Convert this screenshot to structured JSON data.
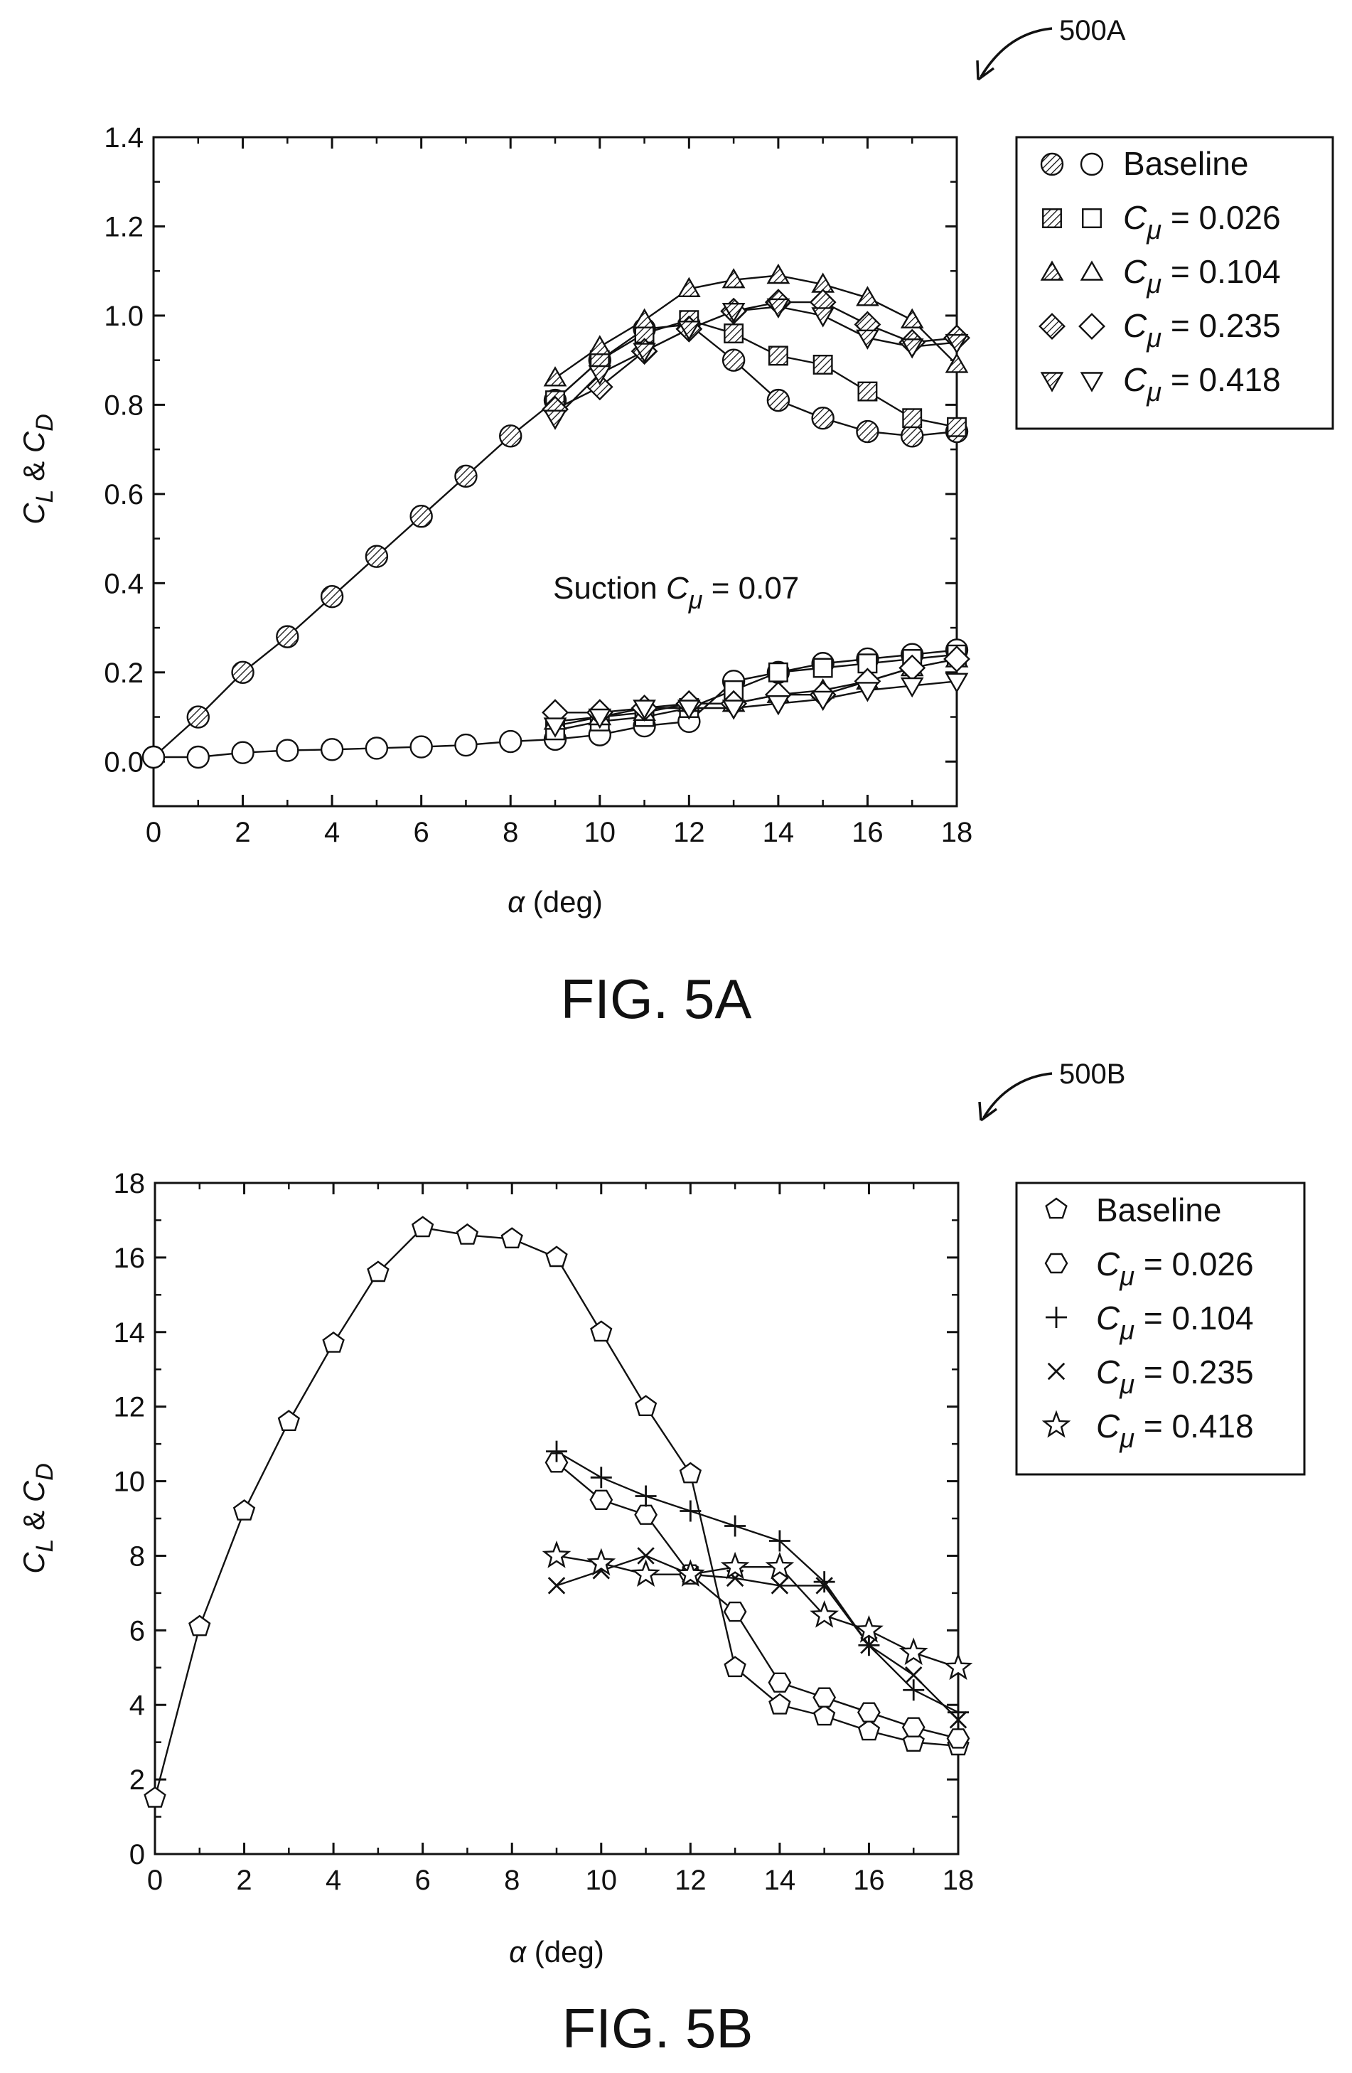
{
  "reference_labels": [
    "500A",
    "500B"
  ],
  "chart_data": [
    {
      "type": "scatter",
      "figure_label": "FIG. 5A",
      "xlabel_symbol": "α",
      "xlabel_unit": " (deg)",
      "ylabel": {
        "c1": "C",
        "s1": "L",
        "amp": " & ",
        "c2": "C",
        "s2": "D"
      },
      "xlim": [
        0,
        18
      ],
      "ylim": [
        -0.1,
        1.4
      ],
      "xticks": [
        0,
        2,
        4,
        6,
        8,
        10,
        12,
        14,
        16,
        18
      ],
      "yticks": [
        0.0,
        0.2,
        0.4,
        0.6,
        0.8,
        1.0,
        1.2,
        1.4
      ],
      "ytick_labels": [
        "0.0",
        "0.2",
        "0.4",
        "0.6",
        "0.8",
        "1.0",
        "1.2",
        "1.4"
      ],
      "grid": false,
      "legend_position": "right",
      "annotation": {
        "prefix": "Suction ",
        "c": "C",
        "mu": "μ",
        "suffix": " = 0.07"
      },
      "legend": [
        {
          "label": "Baseline",
          "marker": "circle"
        },
        {
          "label_c": "C",
          "label_mu": "μ",
          "label_value": " = 0.026",
          "marker": "square"
        },
        {
          "label_c": "C",
          "label_mu": "μ",
          "label_value": " = 0.104",
          "marker": "triangle-up"
        },
        {
          "label_c": "C",
          "label_mu": "μ",
          "label_value": " = 0.235",
          "marker": "diamond"
        },
        {
          "label_c": "C",
          "label_mu": "μ",
          "label_value": " = 0.418",
          "marker": "triangle-down"
        }
      ],
      "series": [
        {
          "name": "Baseline",
          "quantity": "CL",
          "marker": "circle",
          "fill": "hatched",
          "x": [
            0,
            1,
            2,
            3,
            4,
            5,
            6,
            7,
            8,
            9,
            10,
            11,
            12,
            13,
            14,
            15,
            16,
            17,
            18
          ],
          "y": [
            0.01,
            0.1,
            0.2,
            0.28,
            0.37,
            0.46,
            0.55,
            0.64,
            0.73,
            0.81,
            0.9,
            0.97,
            0.98,
            0.9,
            0.81,
            0.77,
            0.74,
            0.73,
            0.74
          ]
        },
        {
          "name": "Baseline",
          "quantity": "CD",
          "marker": "circle",
          "fill": "open",
          "x": [
            0,
            1,
            2,
            3,
            4,
            5,
            6,
            7,
            8,
            9,
            10,
            11,
            12,
            13,
            14,
            15,
            16,
            17,
            18
          ],
          "y": [
            0.01,
            0.01,
            0.02,
            0.025,
            0.027,
            0.03,
            0.033,
            0.037,
            0.045,
            0.05,
            0.06,
            0.08,
            0.09,
            0.18,
            0.2,
            0.22,
            0.23,
            0.24,
            0.25
          ]
        },
        {
          "name": "0.026",
          "quantity": "CL",
          "marker": "square",
          "fill": "hatched",
          "x": [
            9,
            10,
            11,
            12,
            13,
            14,
            15,
            16,
            17,
            18
          ],
          "y": [
            0.81,
            0.9,
            0.96,
            0.99,
            0.96,
            0.91,
            0.89,
            0.83,
            0.77,
            0.75
          ]
        },
        {
          "name": "0.026",
          "quantity": "CD",
          "marker": "square",
          "fill": "open",
          "x": [
            9,
            10,
            11,
            12,
            13,
            14,
            15,
            16,
            17,
            18
          ],
          "y": [
            0.07,
            0.09,
            0.1,
            0.12,
            0.16,
            0.2,
            0.21,
            0.22,
            0.23,
            0.24
          ]
        },
        {
          "name": "0.104",
          "quantity": "CL",
          "marker": "triangle-up",
          "fill": "hatched",
          "x": [
            9,
            10,
            11,
            12,
            13,
            14,
            15,
            16,
            17,
            18
          ],
          "y": [
            0.86,
            0.93,
            0.99,
            1.06,
            1.08,
            1.09,
            1.07,
            1.04,
            0.99,
            0.89
          ]
        },
        {
          "name": "0.104",
          "quantity": "CD",
          "marker": "triangle-up",
          "fill": "open",
          "x": [
            9,
            10,
            11,
            12,
            13,
            14,
            15,
            16,
            17,
            18
          ],
          "y": [
            0.09,
            0.1,
            0.11,
            0.13,
            0.13,
            0.15,
            0.16,
            0.18,
            0.21,
            0.23
          ]
        },
        {
          "name": "0.235",
          "quantity": "CL",
          "marker": "diamond",
          "fill": "hatched",
          "x": [
            9,
            10,
            11,
            12,
            13,
            14,
            15,
            16,
            17,
            18
          ],
          "y": [
            0.79,
            0.84,
            0.92,
            0.97,
            1.01,
            1.03,
            1.03,
            0.98,
            0.94,
            0.95
          ]
        },
        {
          "name": "0.235",
          "quantity": "CD",
          "marker": "diamond",
          "fill": "open",
          "x": [
            9,
            10,
            11,
            12,
            13,
            14,
            15,
            16,
            17,
            18
          ],
          "y": [
            0.11,
            0.11,
            0.12,
            0.13,
            0.13,
            0.15,
            0.15,
            0.18,
            0.21,
            0.23
          ]
        },
        {
          "name": "0.418",
          "quantity": "CL",
          "marker": "triangle-down",
          "fill": "hatched",
          "x": [
            9,
            10,
            11,
            12,
            13,
            14,
            15,
            16,
            17,
            18
          ],
          "y": [
            0.77,
            0.87,
            0.92,
            0.97,
            1.01,
            1.02,
            1.0,
            0.95,
            0.93,
            0.94
          ]
        },
        {
          "name": "0.418",
          "quantity": "CD",
          "marker": "triangle-down",
          "fill": "open",
          "x": [
            9,
            10,
            11,
            12,
            13,
            14,
            15,
            16,
            17,
            18
          ],
          "y": [
            0.08,
            0.1,
            0.12,
            0.12,
            0.12,
            0.13,
            0.14,
            0.16,
            0.17,
            0.18
          ]
        }
      ]
    },
    {
      "type": "line",
      "figure_label": "FIG. 5B",
      "xlabel_symbol": "α",
      "xlabel_unit": " (deg)",
      "ylabel": {
        "c1": "C",
        "s1": "L",
        "amp": " & ",
        "c2": "C",
        "s2": "D"
      },
      "xlim": [
        0,
        18
      ],
      "ylim": [
        0,
        18
      ],
      "xticks": [
        0,
        2,
        4,
        6,
        8,
        10,
        12,
        14,
        16,
        18
      ],
      "yticks": [
        0,
        2,
        4,
        6,
        8,
        10,
        12,
        14,
        16,
        18
      ],
      "ytick_labels": [
        "0",
        "2",
        "4",
        "6",
        "8",
        "10",
        "12",
        "14",
        "16",
        "18"
      ],
      "grid": false,
      "legend_position": "right",
      "legend": [
        {
          "label": "Baseline",
          "marker": "pentagon"
        },
        {
          "label_c": "C",
          "label_mu": "μ",
          "label_value": " = 0.026",
          "marker": "hexagon"
        },
        {
          "label_c": "C",
          "label_mu": "μ",
          "label_value": " = 0.104",
          "marker": "plus"
        },
        {
          "label_c": "C",
          "label_mu": "μ",
          "label_value": " = 0.235",
          "marker": "cross"
        },
        {
          "label_c": "C",
          "label_mu": "μ",
          "label_value": " = 0.418",
          "marker": "star"
        }
      ],
      "series": [
        {
          "name": "Baseline",
          "marker": "pentagon",
          "x": [
            0,
            1,
            2,
            3,
            4,
            5,
            6,
            7,
            8,
            9,
            10,
            11,
            12,
            13,
            14,
            15,
            16,
            17,
            18
          ],
          "y": [
            1.5,
            6.1,
            9.2,
            11.6,
            13.7,
            15.6,
            16.8,
            16.6,
            16.5,
            16.0,
            14.0,
            12.0,
            10.2,
            5.0,
            4.0,
            3.7,
            3.3,
            3.0,
            2.9
          ]
        },
        {
          "name": "0.026",
          "marker": "hexagon",
          "x": [
            9,
            10,
            11,
            12,
            13,
            14,
            15,
            16,
            17,
            18
          ],
          "y": [
            10.5,
            9.5,
            9.1,
            7.5,
            6.5,
            4.6,
            4.2,
            3.8,
            3.4,
            3.1
          ]
        },
        {
          "name": "0.104",
          "marker": "plus",
          "x": [
            9,
            10,
            11,
            12,
            13,
            14,
            15,
            16,
            17,
            18
          ],
          "y": [
            10.8,
            10.1,
            9.6,
            9.2,
            8.8,
            8.4,
            7.3,
            5.6,
            4.4,
            3.8
          ]
        },
        {
          "name": "0.235",
          "marker": "cross",
          "x": [
            9,
            10,
            11,
            12,
            13,
            14,
            15,
            16,
            17,
            18
          ],
          "y": [
            7.2,
            7.6,
            8.0,
            7.5,
            7.4,
            7.2,
            7.2,
            5.6,
            4.8,
            3.6
          ]
        },
        {
          "name": "0.418",
          "marker": "star",
          "x": [
            9,
            10,
            11,
            12,
            13,
            14,
            15,
            16,
            17,
            18
          ],
          "y": [
            8.0,
            7.8,
            7.5,
            7.5,
            7.7,
            7.7,
            6.4,
            6.0,
            5.4,
            5.0
          ]
        }
      ]
    }
  ]
}
